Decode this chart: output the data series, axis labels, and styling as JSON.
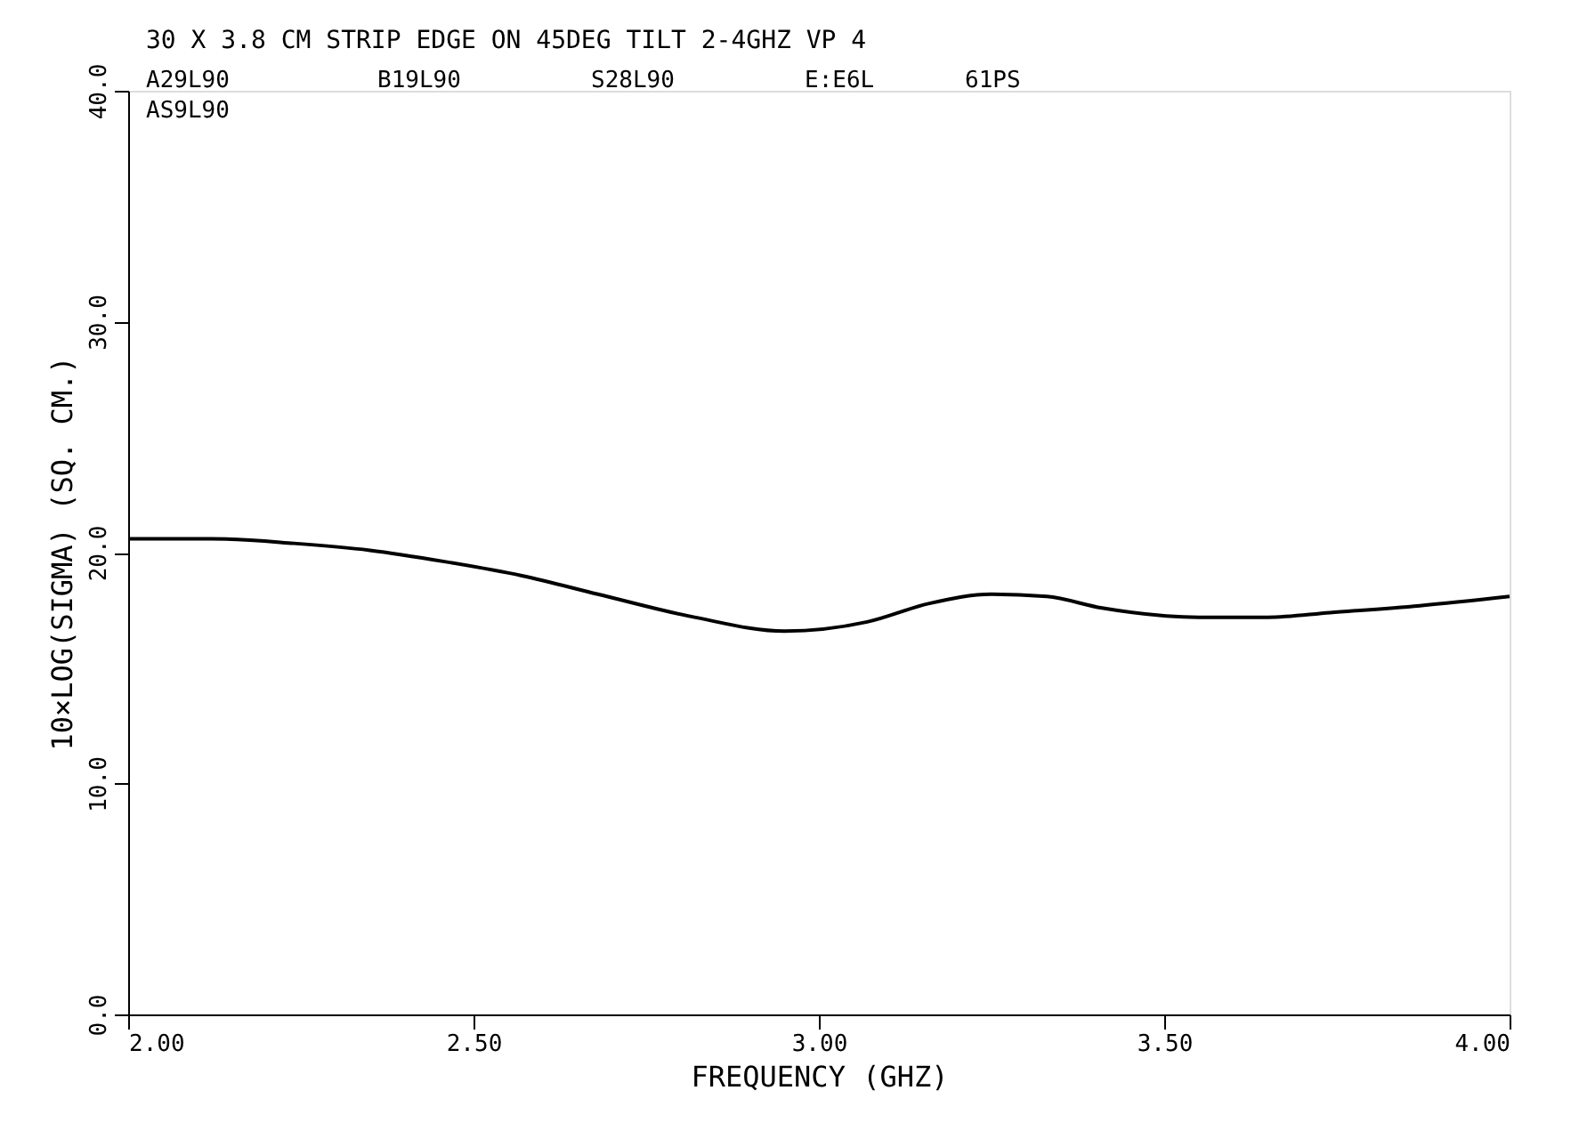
{
  "chart_data": {
    "type": "line",
    "title": "30 X 3.8 CM STRIP EDGE ON 45DEG TILT 2-4GHZ VP 4",
    "xlabel": "FREQUENCY (GHZ)",
    "ylabel": "10×LOG(SIGMA) (SQ. CM.)",
    "annotations": [
      "A29L90",
      "B19L90",
      "S28L90",
      "E:E6L",
      "61PS",
      "AS9L90"
    ],
    "x": [
      2.0,
      2.12,
      2.24,
      2.35,
      2.46,
      2.57,
      2.68,
      2.82,
      2.95,
      3.07,
      3.16,
      3.25,
      3.33,
      3.41,
      3.55,
      3.65,
      3.74,
      3.87,
      4.0
    ],
    "series": [
      {
        "color": "#000000",
        "values": [
          20.6,
          20.6,
          20.4,
          20.1,
          19.6,
          19.0,
          18.2,
          17.2,
          16.6,
          17.0,
          17.8,
          18.2,
          18.1,
          17.6,
          17.2,
          17.2,
          17.4,
          17.7,
          18.1
        ]
      }
    ],
    "xlim": [
      2.0,
      4.0
    ],
    "ylim": [
      0,
      40
    ],
    "xticks": [
      {
        "value": 2.0,
        "label": "2.00"
      },
      {
        "value": 2.5,
        "label": "2.50"
      },
      {
        "value": 3.0,
        "label": "3.00"
      },
      {
        "value": 3.5,
        "label": "3.50"
      },
      {
        "value": 4.0,
        "label": "4.00"
      }
    ],
    "yticks": [
      {
        "value": 0,
        "label": "0.0"
      },
      {
        "value": 10,
        "label": "10.0"
      },
      {
        "value": 20,
        "label": "20.0"
      },
      {
        "value": 30,
        "label": "30.0"
      },
      {
        "value": 40,
        "label": "40.0"
      }
    ],
    "grid": false,
    "marker": "none",
    "line_style": "solid"
  }
}
